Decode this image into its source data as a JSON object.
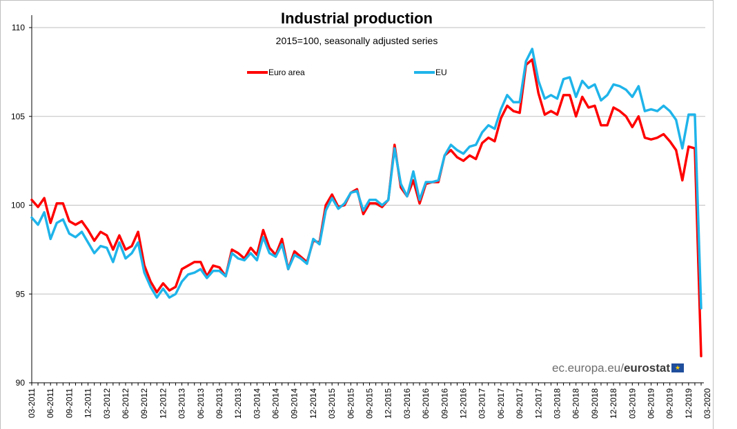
{
  "chart_data": {
    "type": "line",
    "title": "Industrial production",
    "subtitle": "2015=100, seasonally adjusted series",
    "xlabel": "",
    "ylabel": "",
    "ylim": [
      90,
      110
    ],
    "yticks": [
      90,
      95,
      100,
      105,
      110
    ],
    "grid": "horizontal",
    "legend_position": "top",
    "x_start": "2011-03",
    "x_tick_labels": [
      "03-2011",
      "06-2011",
      "09-2011",
      "12-2011",
      "03-2012",
      "06-2012",
      "09-2012",
      "12-2012",
      "03-2013",
      "06-2013",
      "09-2013",
      "12-2013",
      "03-2014",
      "06-2014",
      "09-2014",
      "12-2014",
      "03-2015",
      "06-2015",
      "09-2015",
      "12-2015",
      "03-2016",
      "06-2016",
      "09-2016",
      "12-2016",
      "03-2017",
      "06-2017",
      "09-2017",
      "12-2017",
      "03-2018",
      "06-2018",
      "09-2018",
      "12-2018",
      "03-2019",
      "06-2019",
      "09-2019",
      "12-2019",
      "03-2020"
    ],
    "series": [
      {
        "name": "Euro area",
        "color": "#ff0000",
        "values": [
          100.3,
          99.9,
          100.4,
          99.0,
          100.1,
          100.1,
          99.1,
          98.9,
          99.1,
          98.6,
          98.0,
          98.5,
          98.3,
          97.5,
          98.3,
          97.5,
          97.7,
          98.5,
          96.6,
          95.7,
          95.1,
          95.6,
          95.2,
          95.4,
          96.4,
          96.6,
          96.8,
          96.8,
          96.0,
          96.6,
          96.5,
          96.0,
          97.5,
          97.3,
          97.0,
          97.6,
          97.2,
          98.6,
          97.6,
          97.2,
          98.1,
          96.4,
          97.4,
          97.1,
          96.8,
          98.0,
          97.9,
          100.0,
          100.6,
          99.9,
          100.0,
          100.7,
          100.9,
          99.5,
          100.1,
          100.1,
          99.9,
          100.3,
          103.4,
          101.0,
          100.5,
          101.4,
          100.1,
          101.2,
          101.3,
          101.3,
          102.8,
          103.1,
          102.7,
          102.5,
          102.8,
          102.6,
          103.5,
          103.8,
          103.6,
          104.9,
          105.6,
          105.3,
          105.2,
          107.9,
          108.2,
          106.3,
          105.1,
          105.3,
          105.1,
          106.2,
          106.2,
          105.0,
          106.1,
          105.5,
          105.6,
          104.5,
          104.5,
          105.5,
          105.3,
          105.0,
          104.4,
          105.0,
          103.8,
          103.7,
          103.8,
          104.0,
          103.6,
          103.1,
          101.4,
          103.3,
          103.2,
          91.5
        ]
      },
      {
        "name": "EU",
        "color": "#1fb4ea",
        "values": [
          99.3,
          98.9,
          99.6,
          98.1,
          99.0,
          99.2,
          98.4,
          98.2,
          98.5,
          97.9,
          97.3,
          97.7,
          97.6,
          96.8,
          97.9,
          97.0,
          97.3,
          97.9,
          96.2,
          95.4,
          94.8,
          95.3,
          94.8,
          95.0,
          95.7,
          96.1,
          96.2,
          96.4,
          95.9,
          96.3,
          96.3,
          96.0,
          97.3,
          97.0,
          96.9,
          97.3,
          96.9,
          98.2,
          97.3,
          97.1,
          97.8,
          96.4,
          97.2,
          97.0,
          96.7,
          98.1,
          97.8,
          99.7,
          100.4,
          99.8,
          100.1,
          100.7,
          100.8,
          99.7,
          100.3,
          100.3,
          100.0,
          100.3,
          103.2,
          101.2,
          100.5,
          101.9,
          100.3,
          101.3,
          101.3,
          101.4,
          102.8,
          103.4,
          103.1,
          102.9,
          103.3,
          103.4,
          104.1,
          104.5,
          104.3,
          105.4,
          106.2,
          105.8,
          105.8,
          108.1,
          108.8,
          107.0,
          106.0,
          106.2,
          106.0,
          107.1,
          107.2,
          106.1,
          107.0,
          106.6,
          106.8,
          105.9,
          106.2,
          106.8,
          106.7,
          106.5,
          106.1,
          106.7,
          105.3,
          105.4,
          105.3,
          105.6,
          105.3,
          104.8,
          103.2,
          105.1,
          105.1,
          94.2
        ]
      }
    ]
  },
  "credit": {
    "prefix": "ec.europa.eu/",
    "brand": "eurostat"
  },
  "flag_icon": "eu-flag-icon"
}
